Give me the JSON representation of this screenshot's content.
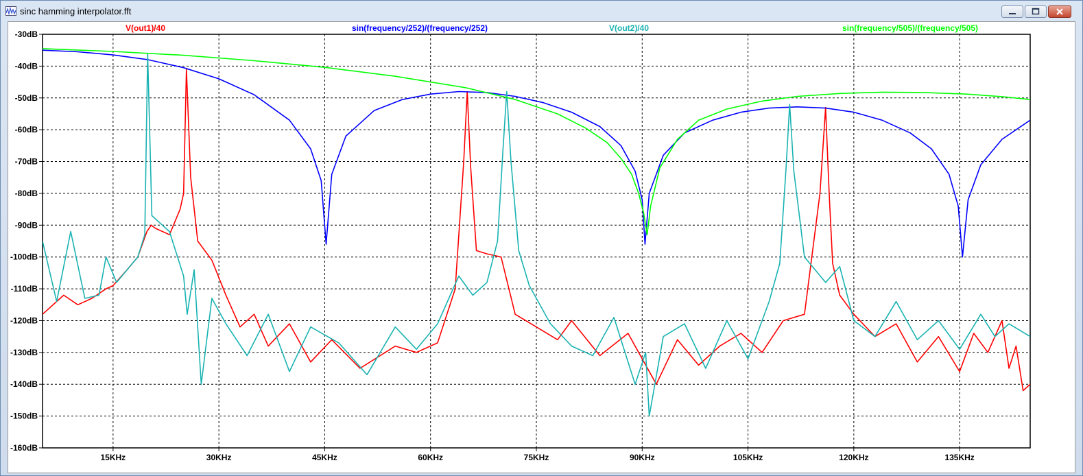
{
  "window": {
    "title": "sinc hamming interpolator.fft",
    "icon": "waveform-icon",
    "buttons": [
      "minimize-icon",
      "maximize-icon",
      "close-icon"
    ]
  },
  "chart_data": {
    "type": "line",
    "xlabel": "",
    "ylabel": "",
    "xlim": [
      5000,
      145000
    ],
    "ylim": [
      -160,
      -30
    ],
    "x_ticks": [
      15000,
      30000,
      45000,
      60000,
      75000,
      90000,
      105000,
      120000,
      135000
    ],
    "x_tick_labels": [
      "15KHz",
      "30KHz",
      "45KHz",
      "60KHz",
      "75KHz",
      "90KHz",
      "105KHz",
      "120KHz",
      "135KHz"
    ],
    "y_ticks": [
      -30,
      -40,
      -50,
      -60,
      -70,
      -80,
      -90,
      -100,
      -110,
      -120,
      -130,
      -140,
      -150,
      -160
    ],
    "y_tick_labels": [
      "-30dB",
      "-40dB",
      "-50dB",
      "-60dB",
      "-70dB",
      "-80dB",
      "-90dB",
      "-100dB",
      "-110dB",
      "-120dB",
      "-130dB",
      "-140dB",
      "-150dB",
      "-160dB"
    ],
    "grid": true,
    "legend_position": "top",
    "series": [
      {
        "name": "V(out1)/40",
        "color": "#ff0000",
        "x": [
          5000,
          8000,
          10000,
          12000,
          14000,
          15000,
          17000,
          18500,
          19800,
          20400,
          21000,
          23000,
          24500,
          25000,
          25400,
          26000,
          27000,
          29000,
          31000,
          33000,
          35000,
          37000,
          40000,
          43000,
          46000,
          50000,
          55000,
          58000,
          61000,
          63500,
          64700,
          65200,
          65700,
          66500,
          68000,
          70000,
          72000,
          75000,
          78000,
          80000,
          84000,
          88000,
          92000,
          95000,
          98000,
          101000,
          104000,
          107000,
          110000,
          113000,
          115200,
          116000,
          116500,
          117000,
          118000,
          120000,
          123000,
          126000,
          129000,
          132000,
          135000,
          137000,
          139000,
          141000,
          142000,
          143000,
          144000,
          145000
        ],
        "y": [
          -118,
          -112,
          -115,
          -113,
          -110,
          -109,
          -104,
          -100,
          -92,
          -90,
          -91,
          -93,
          -85,
          -80,
          -41,
          -75,
          -95,
          -101,
          -112,
          -122,
          -118,
          -128,
          -121,
          -133,
          -126,
          -135,
          -128,
          -130,
          -127,
          -110,
          -70,
          -48,
          -72,
          -98,
          -99,
          -100,
          -118,
          -122,
          -126,
          -120,
          -131,
          -124,
          -140,
          -126,
          -134,
          -128,
          -124,
          -130,
          -120,
          -118,
          -80,
          -53,
          -80,
          -102,
          -112,
          -118,
          -125,
          -121,
          -133,
          -125,
          -136,
          -124,
          -130,
          -120,
          -135,
          -128,
          -142,
          -140
        ]
      },
      {
        "name": "sin(frequency/252)/(frequency/252)",
        "color": "#0000ff",
        "x": [
          5000,
          10000,
          15000,
          20000,
          25000,
          30000,
          35000,
          40000,
          43000,
          44500,
          45200,
          46000,
          48000,
          52000,
          56000,
          60000,
          64000,
          68000,
          72000,
          76000,
          80000,
          84000,
          87000,
          89000,
          90000,
          90400,
          91000,
          93000,
          96000,
          100000,
          104000,
          108000,
          112000,
          116000,
          120000,
          124000,
          128000,
          131000,
          133500,
          134800,
          135400,
          136200,
          138000,
          141000,
          145000
        ],
        "y": [
          -35,
          -35.5,
          -36.5,
          -38,
          -40.5,
          -44,
          -49,
          -57,
          -66,
          -76,
          -96,
          -74,
          -62,
          -54,
          -50.5,
          -48.8,
          -48,
          -48.3,
          -49.5,
          -51.5,
          -54.5,
          -59,
          -65,
          -73,
          -82,
          -96,
          -80,
          -68,
          -61,
          -57,
          -54.5,
          -53.2,
          -52.8,
          -53.2,
          -54.5,
          -57,
          -61,
          -66,
          -74,
          -84,
          -100,
          -82,
          -71,
          -63,
          -57
        ]
      },
      {
        "name": "V(out2)/40",
        "color": "#19b2b2",
        "x": [
          5000,
          7000,
          9000,
          11000,
          13000,
          14000,
          15500,
          17000,
          18500,
          19500,
          19900,
          20500,
          21500,
          23000,
          25000,
          25500,
          26500,
          27500,
          29000,
          31000,
          34000,
          37000,
          40000,
          43000,
          47000,
          51000,
          55000,
          58000,
          61000,
          64000,
          66000,
          68000,
          69500,
          70300,
          70800,
          71400,
          72500,
          74000,
          77000,
          80000,
          83000,
          86000,
          89000,
          90500,
          91000,
          93000,
          96000,
          99000,
          102000,
          105000,
          108000,
          109500,
          110400,
          110900,
          111500,
          113000,
          116000,
          118000,
          120000,
          123000,
          126000,
          129000,
          132000,
          135000,
          138000,
          140000,
          142000,
          145000
        ],
        "y": [
          -95,
          -114,
          -92,
          -113,
          -112,
          -100,
          -108,
          -104,
          -100,
          -93,
          -36,
          -87,
          -89,
          -92,
          -106,
          -118,
          -104,
          -140,
          -113,
          -121,
          -131,
          -118,
          -136,
          -122,
          -127,
          -137,
          -122,
          -129,
          -121,
          -106,
          -112,
          -108,
          -95,
          -65,
          -48,
          -70,
          -98,
          -109,
          -121,
          -128,
          -131,
          -119,
          -140,
          -130,
          -150,
          -125,
          -121,
          -135,
          -120,
          -132,
          -114,
          -102,
          -72,
          -52,
          -73,
          -100,
          -108,
          -103,
          -120,
          -125,
          -114,
          -126,
          -120,
          -129,
          -118,
          -125,
          -121,
          -125
        ]
      },
      {
        "name": "sin(frequency/505)/(frequency/505)",
        "color": "#00ff00",
        "x": [
          5000,
          15000,
          25000,
          35000,
          45000,
          55000,
          65000,
          72000,
          78000,
          82000,
          85000,
          87000,
          88500,
          89500,
          90200,
          90700,
          91200,
          92500,
          95000,
          98000,
          102000,
          107000,
          112000,
          118000,
          124000,
          130000,
          136000,
          141000,
          145000
        ],
        "y": [
          -34.5,
          -35.4,
          -36.6,
          -38.3,
          -40.4,
          -43.2,
          -46.8,
          -50.5,
          -55,
          -59.5,
          -64,
          -69,
          -74,
          -80,
          -86,
          -93,
          -84,
          -72,
          -63,
          -57,
          -53.5,
          -51,
          -49.5,
          -48.6,
          -48.2,
          -48.3,
          -48.8,
          -49.6,
          -50.5
        ]
      }
    ]
  }
}
